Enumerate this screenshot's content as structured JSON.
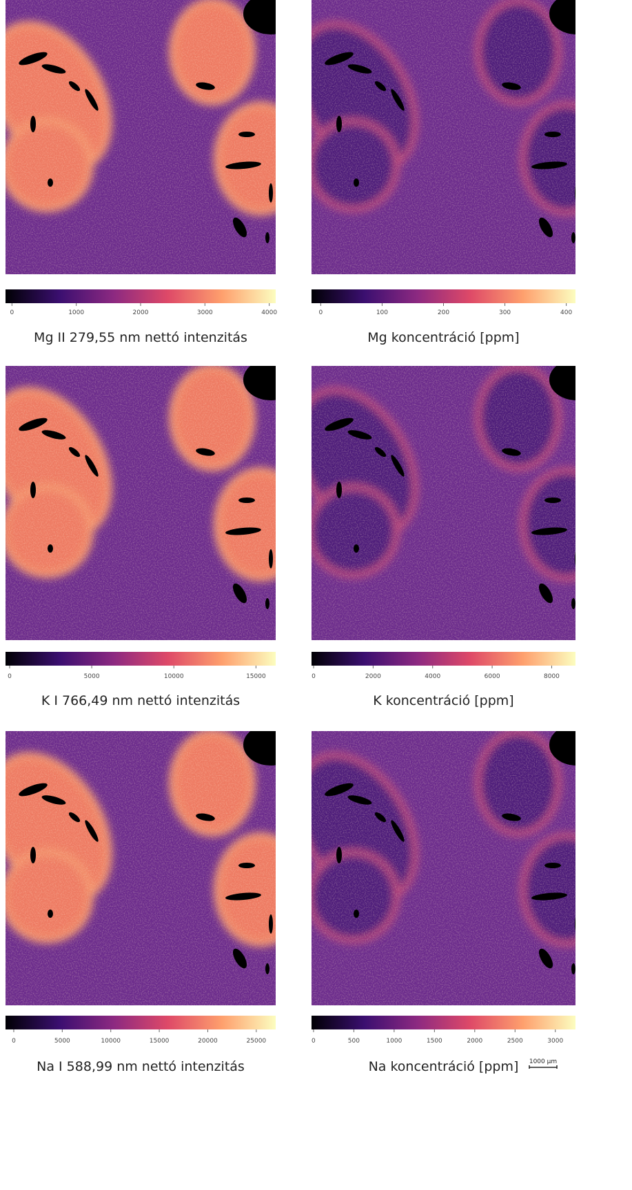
{
  "chart_data": [
    {
      "type": "heatmap",
      "title": "Mg II 279,55 nm nettó intenzitás",
      "clim": [
        -100,
        4100
      ],
      "cticks": [
        0,
        1000,
        2000,
        3000,
        4000
      ],
      "variant": "intensity"
    },
    {
      "type": "heatmap",
      "title": "Mg koncentráció [ppm]",
      "clim": [
        -15,
        415
      ],
      "cticks": [
        0,
        100,
        200,
        300,
        400
      ],
      "variant": "concentration"
    },
    {
      "type": "heatmap",
      "title": "K I 766,49 nm nettó intenzitás",
      "clim": [
        -250,
        16200
      ],
      "cticks": [
        0,
        5000,
        10000,
        15000
      ],
      "variant": "intensity"
    },
    {
      "type": "heatmap",
      "title": "K koncentráció [ppm]",
      "clim": [
        -70,
        8800
      ],
      "cticks": [
        0,
        2000,
        4000,
        6000,
        8000
      ],
      "variant": "concentration"
    },
    {
      "type": "heatmap",
      "title": "Na I 588,99 nm nettó intenzitás",
      "clim": [
        -850,
        27000
      ],
      "cticks": [
        0,
        5000,
        10000,
        15000,
        20000,
        25000
      ],
      "variant": "intensity"
    },
    {
      "type": "heatmap",
      "title": "Na koncentráció [ppm]",
      "clim": [
        -25,
        3250
      ],
      "cticks": [
        0,
        500,
        1000,
        1500,
        2000,
        2500,
        3000
      ],
      "variant": "concentration",
      "scale_bar_label": "1000 μm"
    }
  ]
}
